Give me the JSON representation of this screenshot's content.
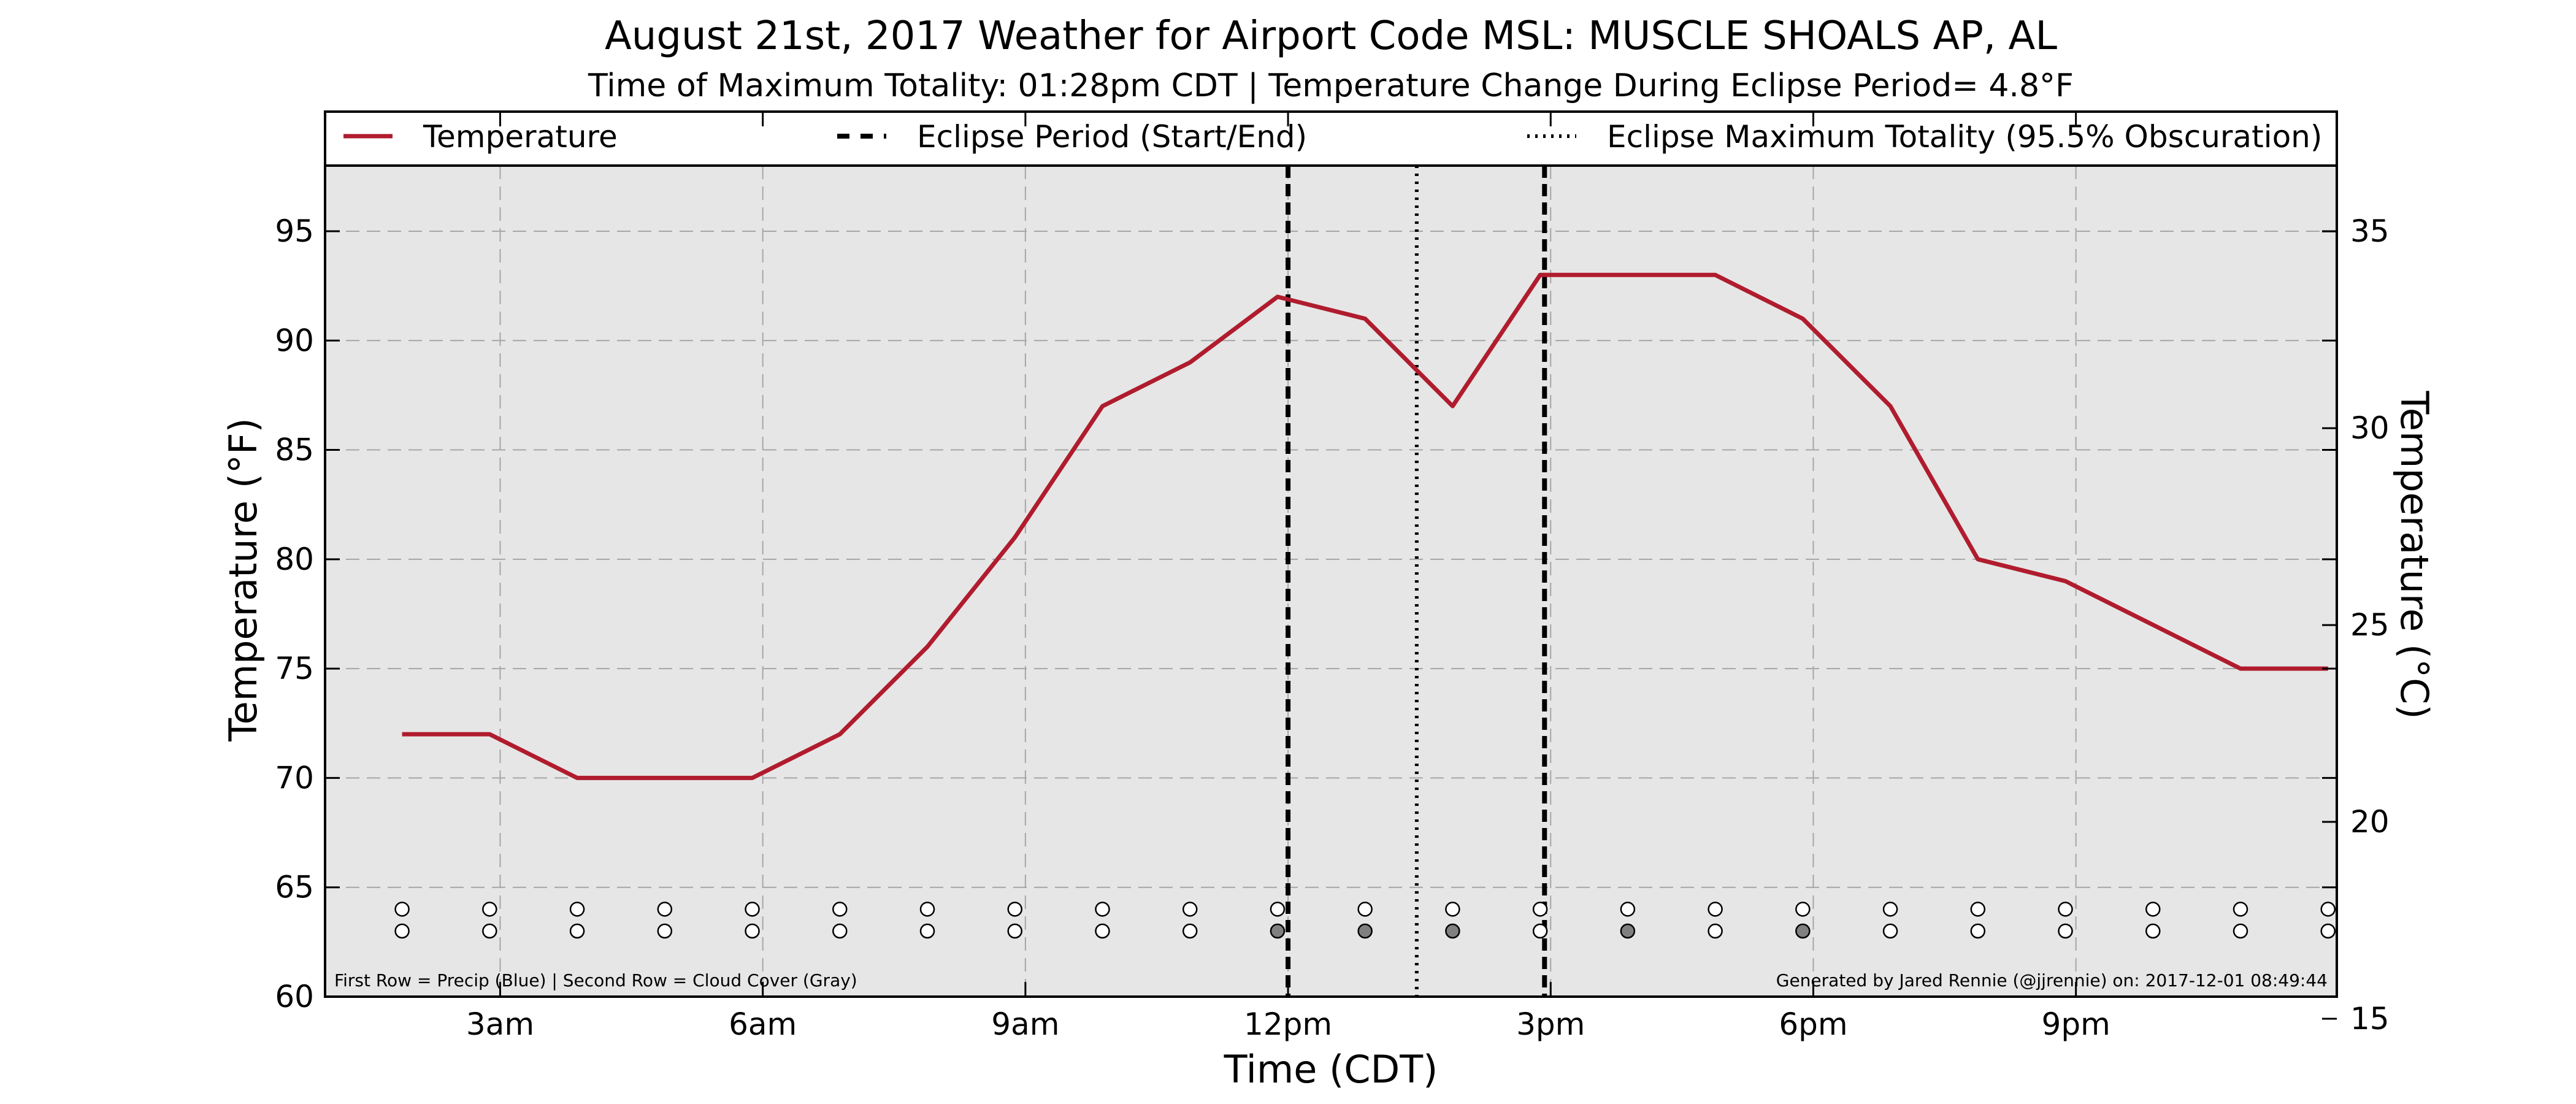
{
  "chart_data": {
    "type": "line",
    "title": "August 21st, 2017 Weather for Airport Code MSL: MUSCLE SHOALS AP, AL",
    "subtitle": "Time of Maximum Totality: 01:28pm CDT | Temperature Change During Eclipse Period= 4.8°F",
    "xlabel": "Time (CDT)",
    "ylabel": "Temperature (°F)",
    "ylabel_right": "Temperature (°C)",
    "xlim": [
      1,
      23.98
    ],
    "ylim": [
      60,
      98
    ],
    "ylim_right": [
      15.56,
      36.67
    ],
    "grid": true,
    "legend_position": "top",
    "x_ticks": [
      {
        "value": 3,
        "label": "3am"
      },
      {
        "value": 6,
        "label": "6am"
      },
      {
        "value": 9,
        "label": "9am"
      },
      {
        "value": 12,
        "label": "12pm"
      },
      {
        "value": 15,
        "label": "3pm"
      },
      {
        "value": 18,
        "label": "6pm"
      },
      {
        "value": 21,
        "label": "9pm"
      }
    ],
    "y_ticks": [
      60,
      65,
      70,
      75,
      80,
      85,
      90,
      95
    ],
    "y_ticks_right": [
      15,
      20,
      25,
      30,
      35
    ],
    "legend": [
      {
        "label": "Temperature",
        "style": "solid"
      },
      {
        "label": "Eclipse Period (Start/End)",
        "style": "dashed"
      },
      {
        "label": "Eclipse Maximum Totality (95.5% Obscuration)",
        "style": "dotted"
      }
    ],
    "series": [
      {
        "name": "Temperature",
        "color": "#b01c2e",
        "x": [
          1.88,
          2.88,
          3.88,
          4.88,
          5.88,
          6.88,
          7.88,
          8.88,
          9.88,
          10.88,
          11.88,
          12.88,
          13.88,
          14.88,
          15.88,
          16.88,
          17.88,
          18.88,
          19.88,
          20.88,
          21.88,
          22.88,
          23.88
        ],
        "y": [
          72,
          72,
          70,
          70,
          70,
          72,
          76,
          81,
          87,
          89,
          92,
          91,
          87,
          93,
          93,
          93,
          91,
          87,
          80,
          79,
          77,
          75,
          75
        ]
      }
    ],
    "eclipse_start": 12.0,
    "eclipse_max": 13.47,
    "eclipse_end": 14.93,
    "obs_row_precip": {
      "y": 64,
      "x": [
        1.88,
        2.88,
        3.88,
        4.88,
        5.88,
        6.88,
        7.88,
        8.88,
        9.88,
        10.88,
        11.88,
        12.88,
        13.88,
        14.88,
        15.88,
        16.88,
        17.88,
        18.88,
        19.88,
        20.88,
        21.88,
        22.88,
        23.88
      ],
      "filled": [
        false,
        false,
        false,
        false,
        false,
        false,
        false,
        false,
        false,
        false,
        false,
        false,
        false,
        false,
        false,
        false,
        false,
        false,
        false,
        false,
        false,
        false,
        false
      ]
    },
    "obs_row_cloud": {
      "y": 63,
      "x": [
        1.88,
        2.88,
        3.88,
        4.88,
        5.88,
        6.88,
        7.88,
        8.88,
        9.88,
        10.88,
        11.88,
        12.88,
        13.88,
        14.88,
        15.88,
        16.88,
        17.88,
        18.88,
        19.88,
        20.88,
        21.88,
        22.88,
        23.88
      ],
      "filled": [
        false,
        false,
        false,
        false,
        false,
        false,
        false,
        false,
        false,
        false,
        true,
        true,
        true,
        false,
        true,
        false,
        true,
        false,
        false,
        false,
        false,
        false,
        false
      ]
    },
    "colors": {
      "plot_background": "#e6e6e6",
      "line": "#b01c2e",
      "marker_filled": "#808080",
      "marker_empty": "#ffffff"
    },
    "footnote_left": "First Row = Precip (Blue) | Second Row = Cloud Cover (Gray)",
    "footnote_right": "Generated by Jared Rennie (@jjrennie) on: 2017-12-01 08:49:44"
  }
}
